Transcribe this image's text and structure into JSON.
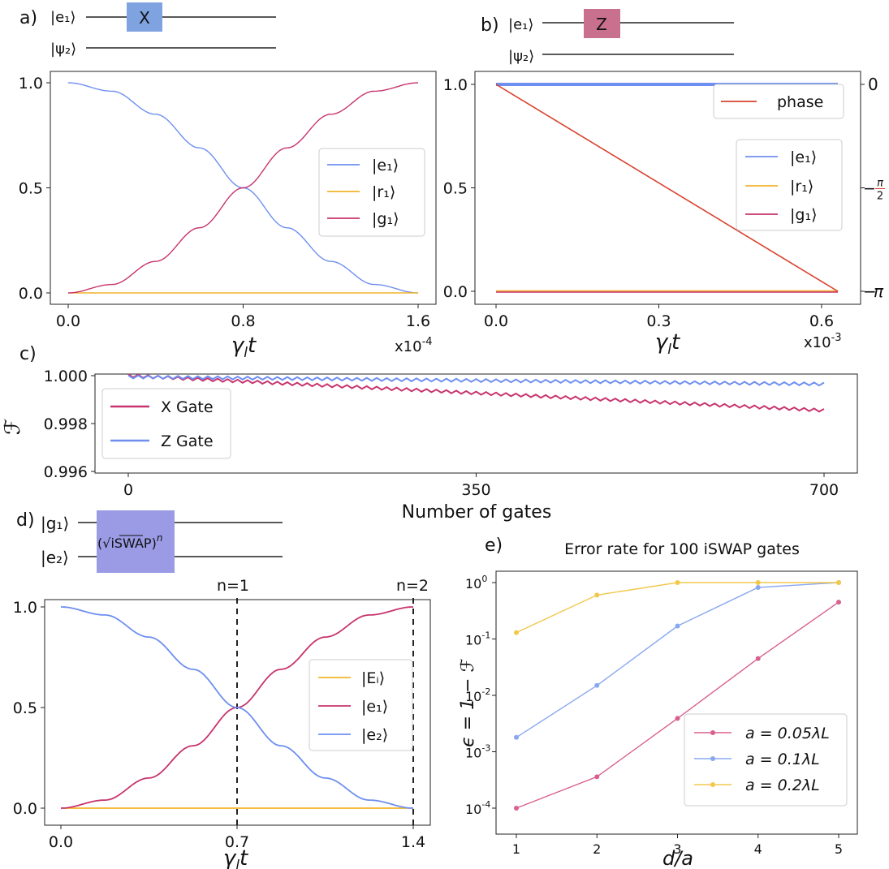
{
  "colors": {
    "blue": "#6e8ff0",
    "orange": "#f2b42a",
    "magenta": "#c7346e",
    "red": "#d8432f",
    "x_gate": "#7fa2e0",
    "z_gate": "#c9708f",
    "iswap": "#9a9be4",
    "legend_yellow": "#f2c84b",
    "legend_pink": "#d86090",
    "legend_blue": "#8aa8f0"
  },
  "panel_a": {
    "label": "a)",
    "circuit": {
      "q1": "|e₁⟩",
      "q2": "|ψ₂⟩",
      "gate": "X"
    },
    "x_mult": "x10",
    "x_exp": "-4"
  },
  "panel_b": {
    "label": "b)",
    "circuit": {
      "q1": "|e₁⟩",
      "q2": "|ψ₂⟩",
      "gate": "Z"
    },
    "x_mult": "x10",
    "x_exp": "-3"
  },
  "panel_c": {
    "label": "c)"
  },
  "panel_d": {
    "label": "d)",
    "circuit": {
      "q1": "|g₁⟩",
      "q2": "|e₂⟩",
      "gate": "(√iSWAP)",
      "gate_exp": "n"
    },
    "n1": "n=1",
    "n2": "n=2"
  },
  "panel_e": {
    "label": "e)"
  },
  "chart_data": [
    {
      "id": "a",
      "type": "line",
      "xlabel": "γlt",
      "ylabel": "",
      "xlim": [
        0,
        1.6
      ],
      "ylim": [
        0,
        1
      ],
      "xticks": [
        "0.0",
        "0.8",
        "1.6"
      ],
      "yticks": [
        "0.0",
        "0.5",
        "1.0"
      ],
      "legend": [
        "|e₁⟩",
        "|r₁⟩",
        "|g₁⟩"
      ],
      "series": [
        {
          "name": "|e₁⟩",
          "x": [
            0,
            0.2,
            0.4,
            0.6,
            0.8,
            1.0,
            1.2,
            1.4,
            1.6
          ],
          "values": [
            1.0,
            0.96,
            0.85,
            0.69,
            0.5,
            0.31,
            0.15,
            0.04,
            0.0
          ]
        },
        {
          "name": "|r₁⟩",
          "x": [
            0,
            1.6
          ],
          "values": [
            0,
            0
          ]
        },
        {
          "name": "|g₁⟩",
          "x": [
            0,
            0.2,
            0.4,
            0.6,
            0.8,
            1.0,
            1.2,
            1.4,
            1.6
          ],
          "values": [
            0.0,
            0.04,
            0.15,
            0.31,
            0.5,
            0.69,
            0.85,
            0.96,
            1.0
          ]
        }
      ]
    },
    {
      "id": "b",
      "type": "line",
      "xlabel": "γlt",
      "ylabel": "",
      "xlim": [
        0,
        0.63
      ],
      "ylim": [
        0,
        1
      ],
      "xticks": [
        "0.0",
        "0.3",
        "0.6"
      ],
      "yticks": [
        "0.0",
        "0.5",
        "1.0"
      ],
      "right_axis": {
        "ticks": [
          "0",
          "−π/2",
          "−π"
        ],
        "tick_values": [
          0,
          -1.5708,
          -3.1416
        ],
        "tick_num": [
          "π",
          "π"
        ],
        "tick_den": [
          "",
          "2"
        ]
      },
      "legend": [
        "|e₁⟩",
        "|r₁⟩",
        "|g₁⟩"
      ],
      "legend2": [
        "phase"
      ],
      "series": [
        {
          "name": "|e₁⟩",
          "x": [
            0,
            0.63
          ],
          "values": [
            1,
            1
          ]
        },
        {
          "name": "|r₁⟩",
          "x": [
            0,
            0.63
          ],
          "values": [
            0,
            0
          ]
        },
        {
          "name": "|g₁⟩",
          "x": [
            0,
            0.63
          ],
          "values": [
            0,
            0
          ]
        },
        {
          "name": "phase",
          "x": [
            0,
            0.63
          ],
          "values": [
            0,
            -3.1416
          ]
        }
      ]
    },
    {
      "id": "c",
      "type": "line",
      "xlabel": "Number of gates",
      "ylabel": "ℱ",
      "xlim": [
        0,
        700
      ],
      "ylim": [
        0.996,
        1.0
      ],
      "xticks": [
        "0",
        "350",
        "700"
      ],
      "yticks": [
        "0.996",
        "0.998",
        "1.000"
      ],
      "legend": [
        "X Gate",
        "Z Gate"
      ],
      "series": [
        {
          "name": "X Gate",
          "x": [
            0,
            700
          ],
          "values": [
            1.0,
            0.99855
          ]
        },
        {
          "name": "Z Gate",
          "x": [
            0,
            700
          ],
          "values": [
            0.99995,
            0.99965
          ]
        }
      ]
    },
    {
      "id": "d",
      "type": "line",
      "xlabel": "γlt",
      "ylabel": "",
      "xlim": [
        0,
        1.4
      ],
      "ylim": [
        0,
        1
      ],
      "xticks": [
        "0.0",
        "0.7",
        "1.4"
      ],
      "yticks": [
        "0.0",
        "0.5",
        "1.0"
      ],
      "legend": [
        "|Eᵢ⟩",
        "|e₁⟩",
        "|e₂⟩"
      ],
      "series": [
        {
          "name": "|Eᵢ⟩",
          "x": [
            0,
            1.4
          ],
          "values": [
            0,
            0
          ]
        },
        {
          "name": "|e₁⟩",
          "x": [
            0,
            0.175,
            0.35,
            0.525,
            0.7,
            0.875,
            1.05,
            1.225,
            1.4
          ],
          "values": [
            0.0,
            0.04,
            0.15,
            0.31,
            0.5,
            0.69,
            0.85,
            0.96,
            1.0
          ]
        },
        {
          "name": "|e₂⟩",
          "x": [
            0,
            0.175,
            0.35,
            0.525,
            0.7,
            0.875,
            1.05,
            1.225,
            1.4
          ],
          "values": [
            1.0,
            0.96,
            0.85,
            0.69,
            0.5,
            0.31,
            0.15,
            0.04,
            0.0
          ]
        }
      ]
    },
    {
      "id": "e",
      "type": "line",
      "title": "Error rate for 100 iSWAP gates",
      "xlabel": "d/a",
      "ylabel": "ϵ = 1 − ℱ",
      "yscale": "log",
      "xlim": [
        1,
        5
      ],
      "ylim": [
        0.0001,
        1
      ],
      "xticks": [
        "1",
        "2",
        "3",
        "4",
        "5"
      ],
      "yticks_exp": [
        "-4",
        "-3",
        "-2",
        "-1",
        "0"
      ],
      "ytick_base": "10",
      "legend": [
        "a = 0.05λL",
        "a = 0.1λL",
        "a = 0.2λL"
      ],
      "series": [
        {
          "name": "a = 0.05λL",
          "x": [
            1,
            2,
            3,
            4,
            5
          ],
          "values": [
            0.0001,
            0.00036,
            0.0039,
            0.045,
            0.45
          ]
        },
        {
          "name": "a = 0.1λL",
          "x": [
            1,
            2,
            3,
            4,
            5
          ],
          "values": [
            0.0018,
            0.015,
            0.17,
            0.82,
            1.0
          ]
        },
        {
          "name": "a = 0.2λL",
          "x": [
            1,
            2,
            3,
            4,
            5
          ],
          "values": [
            0.13,
            0.6,
            1.0,
            1.0,
            1.0
          ]
        }
      ]
    }
  ]
}
